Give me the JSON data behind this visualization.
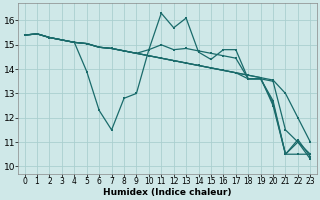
{
  "xlabel": "Humidex (Indice chaleur)",
  "ylabel": "",
  "xlim": [
    -0.5,
    23.5
  ],
  "ylim": [
    9.7,
    16.7
  ],
  "yticks": [
    10,
    11,
    12,
    13,
    14,
    15,
    16
  ],
  "xticks": [
    0,
    1,
    2,
    3,
    4,
    5,
    6,
    7,
    8,
    9,
    10,
    11,
    12,
    13,
    14,
    15,
    16,
    17,
    18,
    19,
    20,
    21,
    22,
    23
  ],
  "background_color": "#cfe8e8",
  "grid_color": "#aacfcf",
  "line_color": "#1a6b6b",
  "lines": [
    [
      15.4,
      15.45,
      15.3,
      15.2,
      15.1,
      13.9,
      12.3,
      11.5,
      12.8,
      13.0,
      14.8,
      16.3,
      15.7,
      16.1,
      14.7,
      14.4,
      14.8,
      14.8,
      13.6,
      13.6,
      12.7,
      10.5,
      11.1,
      10.4
    ],
    [
      15.4,
      15.45,
      15.3,
      15.2,
      15.1,
      15.05,
      14.9,
      14.85,
      14.75,
      14.65,
      14.8,
      15.0,
      14.8,
      14.85,
      14.75,
      14.65,
      14.55,
      14.45,
      13.6,
      13.6,
      12.6,
      10.5,
      11.0,
      10.3
    ],
    [
      15.4,
      15.45,
      15.3,
      15.2,
      15.1,
      15.05,
      14.9,
      14.85,
      14.75,
      14.65,
      14.55,
      14.45,
      14.35,
      14.25,
      14.15,
      14.05,
      13.95,
      13.85,
      13.6,
      13.6,
      13.5,
      11.5,
      11.0,
      10.5
    ],
    [
      15.4,
      15.45,
      15.3,
      15.2,
      15.1,
      15.05,
      14.9,
      14.85,
      14.75,
      14.65,
      14.55,
      14.45,
      14.35,
      14.25,
      14.15,
      14.05,
      13.95,
      13.85,
      13.75,
      13.65,
      13.55,
      13.0,
      12.0,
      11.0
    ],
    [
      15.4,
      15.45,
      15.3,
      15.2,
      15.1,
      15.05,
      14.9,
      14.85,
      14.75,
      14.65,
      14.55,
      14.45,
      14.35,
      14.25,
      14.15,
      14.05,
      13.95,
      13.85,
      13.75,
      13.65,
      12.5,
      10.5,
      10.5,
      10.5
    ]
  ]
}
